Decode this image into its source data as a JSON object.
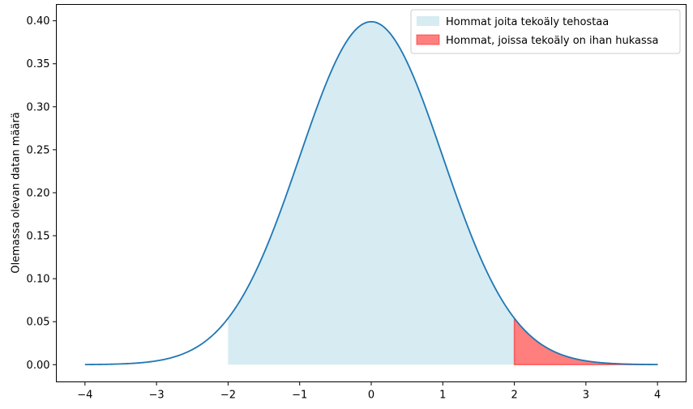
{
  "chart_data": {
    "type": "area",
    "title": "",
    "xlabel": "",
    "ylabel": "Olemassa olevan datan määrä",
    "xlim": [
      -4.4,
      4.4
    ],
    "ylim": [
      -0.02,
      0.419
    ],
    "x_ticks": [
      -4,
      -3,
      -2,
      -1,
      0,
      1,
      2,
      3,
      4
    ],
    "x_tick_labels": [
      "−4",
      "−3",
      "−2",
      "−1",
      "0",
      "1",
      "2",
      "3",
      "4"
    ],
    "y_ticks": [
      0.0,
      0.05,
      0.1,
      0.15,
      0.2,
      0.25,
      0.3,
      0.35,
      0.4
    ],
    "y_tick_labels": [
      "0.00",
      "0.05",
      "0.10",
      "0.15",
      "0.20",
      "0.25",
      "0.30",
      "0.35",
      "0.40"
    ],
    "curve": {
      "x": [
        -4.0,
        -3.5,
        -3.0,
        -2.5,
        -2.0,
        -1.5,
        -1.0,
        -0.5,
        0.0,
        0.5,
        1.0,
        1.5,
        2.0,
        2.5,
        3.0,
        3.5,
        4.0
      ],
      "y": [
        0.0001,
        0.0009,
        0.0044,
        0.0175,
        0.054,
        0.1295,
        0.242,
        0.3521,
        0.3989,
        0.3521,
        0.242,
        0.1295,
        0.054,
        0.0175,
        0.0044,
        0.0009,
        0.0001
      ],
      "color": "#1f77b4"
    },
    "series": [
      {
        "name": "Hommat joita tekoäly tehostaa",
        "x_range": [
          -2,
          2
        ],
        "color": "#add8e6",
        "opacity": 0.5
      },
      {
        "name": "Hommat, joissa tekoäly on ihan hukassa",
        "x_range": [
          2,
          4
        ],
        "color": "#ff0000",
        "opacity": 0.5
      }
    ],
    "grid": false,
    "legend_position": "top-right"
  }
}
